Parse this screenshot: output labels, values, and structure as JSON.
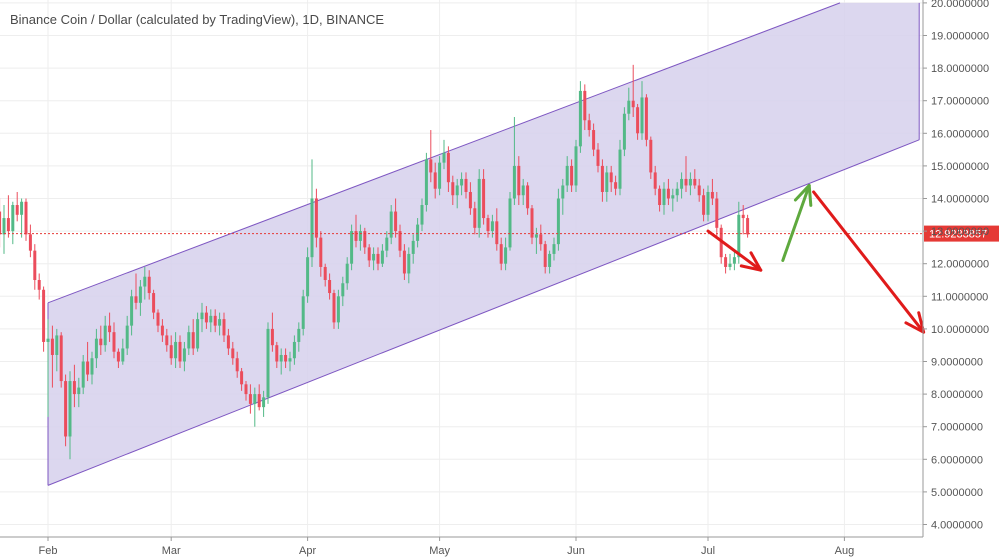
{
  "chart_data": {
    "type": "candlestick",
    "title": "Binance Coin / Dollar (calculated by TradingView), 1D, BINANCE",
    "x_ticks": [
      "Feb",
      "Mar",
      "Apr",
      "May",
      "Jun",
      "Jul",
      "Aug"
    ],
    "y_ticks": [
      "4.0000000",
      "5.0000000",
      "6.0000000",
      "7.0000000",
      "8.0000000",
      "9.0000000",
      "10.0000000",
      "11.0000000",
      "12.0000000",
      "13.0000000",
      "14.0000000",
      "15.0000000",
      "16.0000000",
      "17.0000000",
      "18.0000000",
      "19.0000000",
      "20.0000000"
    ],
    "ylim": [
      3.7,
      20.1
    ],
    "last_price": 12.9233857,
    "last_price_label": "12.9233857",
    "grid": true,
    "colors": {
      "up": "#53b987",
      "down": "#eb4d5c",
      "channel_fill": "#d6d0ec",
      "channel_line": "#7e57c2",
      "price_line": "#e53935",
      "arrow_red": "#e01b1b",
      "arrow_green": "#5ea93e"
    },
    "channel": {
      "lower": {
        "start": [
          "Feb 1",
          5.2
        ],
        "end": [
          "Aug 18",
          15.8
        ]
      },
      "upper": {
        "start": [
          "Feb 1",
          10.8
        ],
        "end": [
          "Jul 31",
          20.0
        ]
      },
      "fill_end": "Aug 18"
    },
    "arrows": [
      {
        "color": "red",
        "from": [
          "Jul 1",
          13.0
        ],
        "to": [
          "Jul 13",
          11.8
        ]
      },
      {
        "color": "green",
        "from": [
          "Jul 18",
          12.1
        ],
        "to": [
          "Jul 24",
          14.4
        ]
      },
      {
        "color": "red",
        "from": [
          "Jul 25",
          14.2
        ],
        "to": [
          "Aug 19",
          9.9
        ]
      }
    ],
    "candles": [
      [
        "Jan 18",
        13.2,
        14.2,
        12.5,
        14.0
      ],
      [
        "Jan 19",
        14.0,
        14.5,
        13.0,
        13.2
      ],
      [
        "Jan 20",
        13.2,
        14.3,
        12.7,
        13.6
      ],
      [
        "Jan 21",
        13.6,
        14.0,
        12.5,
        12.9
      ],
      [
        "Jan 22",
        12.9,
        13.8,
        12.3,
        13.4
      ],
      [
        "Jan 23",
        13.4,
        14.1,
        12.8,
        13.0
      ],
      [
        "Jan 24",
        13.0,
        13.9,
        12.6,
        13.8
      ],
      [
        "Jan 25",
        13.8,
        14.2,
        13.3,
        13.5
      ],
      [
        "Jan 26",
        13.5,
        14.0,
        12.8,
        13.9
      ],
      [
        "Jan 27",
        13.9,
        14.0,
        12.7,
        12.9
      ],
      [
        "Jan 28",
        12.9,
        13.2,
        12.2,
        12.4
      ],
      [
        "Jan 29",
        12.4,
        12.6,
        11.2,
        11.5
      ],
      [
        "Jan 30",
        11.5,
        11.7,
        10.9,
        11.2
      ],
      [
        "Jan 31",
        11.2,
        11.3,
        9.3,
        9.6
      ],
      [
        "Feb 1",
        9.6,
        10.3,
        7.3,
        9.7
      ],
      [
        "Feb 2",
        9.7,
        10.1,
        8.2,
        9.2
      ],
      [
        "Feb 3",
        9.2,
        10.0,
        8.7,
        9.8
      ],
      [
        "Feb 4",
        9.8,
        9.9,
        8.2,
        8.4
      ],
      [
        "Feb 5",
        8.4,
        8.6,
        6.4,
        6.7
      ],
      [
        "Feb 6",
        6.7,
        8.7,
        6.0,
        8.4
      ],
      [
        "Feb 7",
        8.4,
        8.9,
        7.6,
        8.0
      ],
      [
        "Feb 8",
        8.0,
        8.5,
        7.6,
        8.2
      ],
      [
        "Feb 9",
        8.2,
        9.2,
        8.0,
        9.0
      ],
      [
        "Feb 10",
        9.0,
        9.6,
        8.4,
        8.6
      ],
      [
        "Feb 11",
        8.6,
        9.3,
        8.3,
        9.1
      ],
      [
        "Feb 12",
        9.1,
        10.0,
        8.8,
        9.7
      ],
      [
        "Feb 13",
        9.7,
        10.1,
        9.2,
        9.5
      ],
      [
        "Feb 14",
        9.5,
        10.4,
        9.3,
        10.1
      ],
      [
        "Feb 15",
        10.1,
        10.5,
        9.6,
        9.9
      ],
      [
        "Feb 16",
        9.9,
        10.2,
        9.1,
        9.3
      ],
      [
        "Feb 17",
        9.3,
        9.4,
        8.8,
        9.0
      ],
      [
        "Feb 18",
        9.0,
        9.7,
        8.9,
        9.4
      ],
      [
        "Feb 19",
        9.4,
        10.4,
        9.2,
        10.1
      ],
      [
        "Feb 20",
        10.1,
        11.2,
        9.8,
        11.0
      ],
      [
        "Feb 21",
        11.0,
        11.7,
        10.6,
        10.8
      ],
      [
        "Feb 22",
        10.8,
        11.5,
        10.4,
        11.3
      ],
      [
        "Feb 23",
        11.3,
        11.9,
        10.9,
        11.6
      ],
      [
        "Feb 24",
        11.6,
        11.8,
        10.9,
        11.1
      ],
      [
        "Feb 25",
        11.1,
        11.2,
        10.3,
        10.5
      ],
      [
        "Feb 26",
        10.5,
        10.6,
        9.9,
        10.1
      ],
      [
        "Feb 27",
        10.1,
        10.3,
        9.6,
        9.8
      ],
      [
        "Feb 28",
        9.8,
        10.0,
        9.3,
        9.5
      ],
      [
        "Mar 1",
        9.5,
        9.8,
        8.9,
        9.1
      ],
      [
        "Mar 2",
        9.1,
        9.9,
        8.8,
        9.6
      ],
      [
        "Mar 3",
        9.6,
        9.8,
        8.8,
        9.0
      ],
      [
        "Mar 4",
        9.0,
        9.6,
        8.7,
        9.4
      ],
      [
        "Mar 5",
        9.4,
        10.1,
        9.2,
        9.9
      ],
      [
        "Mar 6",
        9.9,
        10.3,
        9.2,
        9.4
      ],
      [
        "Mar 7",
        9.4,
        10.5,
        9.3,
        10.3
      ],
      [
        "Mar 8",
        10.3,
        10.8,
        9.9,
        10.5
      ],
      [
        "Mar 9",
        10.5,
        10.7,
        10.0,
        10.2
      ],
      [
        "Mar 10",
        10.2,
        10.6,
        9.9,
        10.4
      ],
      [
        "Mar 11",
        10.4,
        10.6,
        9.9,
        10.1
      ],
      [
        "Mar 12",
        10.1,
        10.5,
        9.8,
        10.3
      ],
      [
        "Mar 13",
        10.3,
        10.5,
        9.6,
        9.8
      ],
      [
        "Mar 14",
        9.8,
        10.0,
        9.2,
        9.4
      ],
      [
        "Mar 15",
        9.4,
        9.6,
        8.9,
        9.1
      ],
      [
        "Mar 16",
        9.1,
        9.3,
        8.5,
        8.7
      ],
      [
        "Mar 17",
        8.7,
        8.8,
        8.1,
        8.3
      ],
      [
        "Mar 18",
        8.3,
        8.4,
        7.8,
        8.0
      ],
      [
        "Mar 19",
        8.0,
        8.3,
        7.4,
        7.7
      ],
      [
        "Mar 20",
        7.7,
        8.2,
        7.0,
        8.0
      ],
      [
        "Mar 21",
        8.0,
        8.3,
        7.5,
        7.6
      ],
      [
        "Mar 22",
        7.6,
        8.1,
        7.3,
        7.9
      ],
      [
        "Mar 23",
        7.9,
        10.2,
        7.7,
        10.0
      ],
      [
        "Mar 24",
        10.0,
        10.5,
        9.3,
        9.5
      ],
      [
        "Mar 25",
        9.5,
        9.6,
        8.8,
        9.0
      ],
      [
        "Mar 26",
        9.0,
        9.4,
        8.6,
        9.2
      ],
      [
        "Mar 27",
        9.2,
        9.4,
        8.8,
        9.0
      ],
      [
        "Mar 28",
        9.0,
        9.3,
        8.7,
        9.1
      ],
      [
        "Mar 29",
        9.1,
        9.8,
        8.9,
        9.6
      ],
      [
        "Mar 30",
        9.6,
        10.2,
        9.3,
        10.0
      ],
      [
        "Mar 31",
        10.0,
        11.2,
        9.8,
        11.0
      ],
      [
        "Apr 1",
        11.0,
        12.5,
        10.8,
        12.2
      ],
      [
        "Apr 2",
        12.2,
        15.2,
        11.9,
        14.0
      ],
      [
        "Apr 3",
        14.0,
        14.3,
        12.5,
        12.8
      ],
      [
        "Apr 4",
        12.8,
        13.0,
        11.6,
        11.9
      ],
      [
        "Apr 5",
        11.9,
        12.0,
        11.3,
        11.5
      ],
      [
        "Apr 6",
        11.5,
        11.7,
        10.9,
        11.1
      ],
      [
        "Apr 7",
        11.1,
        11.2,
        10.0,
        10.2
      ],
      [
        "Apr 8",
        10.2,
        11.2,
        10.0,
        11.0
      ],
      [
        "Apr 9",
        11.0,
        11.6,
        10.7,
        11.4
      ],
      [
        "Apr 10",
        11.4,
        12.2,
        11.2,
        12.0
      ],
      [
        "Apr 11",
        12.0,
        13.2,
        11.8,
        13.0
      ],
      [
        "Apr 12",
        13.0,
        13.5,
        12.5,
        12.7
      ],
      [
        "Apr 13",
        12.7,
        13.2,
        12.4,
        13.0
      ],
      [
        "Apr 14",
        13.0,
        13.1,
        12.3,
        12.5
      ],
      [
        "Apr 15",
        12.5,
        12.6,
        11.9,
        12.1
      ],
      [
        "Apr 16",
        12.1,
        12.5,
        11.8,
        12.3
      ],
      [
        "Apr 17",
        12.3,
        12.5,
        11.8,
        12.0
      ],
      [
        "Apr 18",
        12.0,
        12.6,
        11.9,
        12.4
      ],
      [
        "Apr 19",
        12.4,
        13.0,
        12.2,
        12.8
      ],
      [
        "Apr 20",
        12.8,
        13.8,
        12.6,
        13.6
      ],
      [
        "Apr 21",
        13.6,
        14.0,
        12.8,
        13.0
      ],
      [
        "Apr 22",
        13.0,
        13.2,
        12.2,
        12.4
      ],
      [
        "Apr 23",
        12.4,
        12.6,
        11.5,
        11.7
      ],
      [
        "Apr 24",
        11.7,
        12.5,
        11.4,
        12.3
      ],
      [
        "Apr 25",
        12.3,
        12.9,
        12.0,
        12.7
      ],
      [
        "Apr 26",
        12.7,
        13.4,
        12.5,
        13.2
      ],
      [
        "Apr 27",
        13.2,
        14.0,
        13.0,
        13.8
      ],
      [
        "Apr 28",
        13.8,
        15.4,
        13.6,
        15.2
      ],
      [
        "Apr 29",
        15.2,
        16.1,
        14.5,
        14.8
      ],
      [
        "Apr 30",
        14.8,
        15.1,
        14.0,
        14.3
      ],
      [
        "May 1",
        14.3,
        15.3,
        14.1,
        15.1
      ],
      [
        "May 2",
        15.1,
        15.8,
        14.9,
        15.4
      ],
      [
        "May 3",
        15.4,
        15.6,
        14.2,
        14.5
      ],
      [
        "May 4",
        14.5,
        14.7,
        13.8,
        14.1
      ],
      [
        "May 5",
        14.1,
        14.6,
        13.7,
        14.4
      ],
      [
        "May 6",
        14.4,
        14.8,
        14.1,
        14.6
      ],
      [
        "May 7",
        14.6,
        14.8,
        14.0,
        14.2
      ],
      [
        "May 8",
        14.2,
        14.5,
        13.5,
        13.7
      ],
      [
        "May 9",
        13.7,
        13.9,
        12.9,
        13.1
      ],
      [
        "May 10",
        13.1,
        14.9,
        12.8,
        14.6
      ],
      [
        "May 11",
        14.6,
        14.9,
        13.2,
        13.4
      ],
      [
        "May 12",
        13.4,
        13.5,
        12.8,
        13.0
      ],
      [
        "May 13",
        13.0,
        13.5,
        12.8,
        13.3
      ],
      [
        "May 14",
        13.3,
        13.7,
        12.4,
        12.6
      ],
      [
        "May 15",
        12.6,
        12.8,
        11.8,
        12.0
      ],
      [
        "May 16",
        12.0,
        12.8,
        11.8,
        12.5
      ],
      [
        "May 17",
        12.5,
        14.2,
        12.4,
        14.0
      ],
      [
        "May 18",
        14.0,
        16.5,
        13.8,
        15.0
      ],
      [
        "May 19",
        15.0,
        15.3,
        13.8,
        14.1
      ],
      [
        "May 20",
        14.1,
        14.6,
        13.8,
        14.4
      ],
      [
        "May 21",
        14.4,
        14.5,
        13.5,
        13.7
      ],
      [
        "May 22",
        13.7,
        13.8,
        12.6,
        12.8
      ],
      [
        "May 23",
        12.8,
        13.1,
        12.3,
        12.9
      ],
      [
        "May 24",
        12.9,
        13.2,
        12.4,
        12.6
      ],
      [
        "May 25",
        12.6,
        12.7,
        11.7,
        11.9
      ],
      [
        "May 26",
        11.9,
        12.4,
        11.7,
        12.3
      ],
      [
        "May 27",
        12.3,
        12.8,
        12.1,
        12.6
      ],
      [
        "May 28",
        12.6,
        14.3,
        12.4,
        14.0
      ],
      [
        "May 29",
        14.0,
        14.6,
        13.5,
        14.4
      ],
      [
        "May 30",
        14.4,
        15.3,
        14.2,
        15.0
      ],
      [
        "May 31",
        15.0,
        15.2,
        14.2,
        14.4
      ],
      [
        "Jun 1",
        14.4,
        15.8,
        14.2,
        15.6
      ],
      [
        "Jun 2",
        15.6,
        17.6,
        15.4,
        17.3
      ],
      [
        "Jun 3",
        17.3,
        17.5,
        16.1,
        16.4
      ],
      [
        "Jun 4",
        16.4,
        16.6,
        15.9,
        16.1
      ],
      [
        "Jun 5",
        16.1,
        16.3,
        15.3,
        15.5
      ],
      [
        "Jun 6",
        15.5,
        15.7,
        14.8,
        15.0
      ],
      [
        "Jun 7",
        15.0,
        15.2,
        13.9,
        14.2
      ],
      [
        "Jun 8",
        14.2,
        15.0,
        13.9,
        14.8
      ],
      [
        "Jun 9",
        14.8,
        15.0,
        14.2,
        14.5
      ],
      [
        "Jun 10",
        14.5,
        14.7,
        14.1,
        14.3
      ],
      [
        "Jun 11",
        14.3,
        15.8,
        14.1,
        15.5
      ],
      [
        "Jun 12",
        15.5,
        16.8,
        15.3,
        16.6
      ],
      [
        "Jun 13",
        16.6,
        17.4,
        16.4,
        17.0
      ],
      [
        "Jun 14",
        17.0,
        18.1,
        16.5,
        16.8
      ],
      [
        "Jun 15",
        16.8,
        16.9,
        15.8,
        16.0
      ],
      [
        "Jun 16",
        16.0,
        17.6,
        15.8,
        17.1
      ],
      [
        "Jun 17",
        17.1,
        17.2,
        15.6,
        15.8
      ],
      [
        "Jun 18",
        15.8,
        15.9,
        14.6,
        14.8
      ],
      [
        "Jun 19",
        14.8,
        15.0,
        14.1,
        14.3
      ],
      [
        "Jun 20",
        14.3,
        14.4,
        13.6,
        13.8
      ],
      [
        "Jun 21",
        13.8,
        14.5,
        13.5,
        14.3
      ],
      [
        "Jun 22",
        14.3,
        14.6,
        13.8,
        14.0
      ],
      [
        "Jun 23",
        14.0,
        14.3,
        13.6,
        14.1
      ],
      [
        "Jun 24",
        14.1,
        14.5,
        13.9,
        14.3
      ],
      [
        "Jun 25",
        14.3,
        14.8,
        14.0,
        14.6
      ],
      [
        "Jun 26",
        14.6,
        15.3,
        14.2,
        14.4
      ],
      [
        "Jun 27",
        14.4,
        14.8,
        14.1,
        14.6
      ],
      [
        "Jun 28",
        14.6,
        14.9,
        14.3,
        14.4
      ],
      [
        "Jun 29",
        14.4,
        14.6,
        13.9,
        14.1
      ],
      [
        "Jun 30",
        14.1,
        14.3,
        13.3,
        13.5
      ],
      [
        "Jul 1",
        13.5,
        14.4,
        13.3,
        14.2
      ],
      [
        "Jul 2",
        14.2,
        14.6,
        13.8,
        14.0
      ],
      [
        "Jul 3",
        14.0,
        14.2,
        12.8,
        13.1
      ],
      [
        "Jul 4",
        13.1,
        13.2,
        12.0,
        12.2
      ],
      [
        "Jul 5",
        12.2,
        12.3,
        11.7,
        11.9
      ],
      [
        "Jul 6",
        11.9,
        12.3,
        11.8,
        12.0
      ],
      [
        "Jul 7",
        12.0,
        12.4,
        11.8,
        12.2
      ],
      [
        "Jul 8",
        12.2,
        13.9,
        12.0,
        13.5
      ],
      [
        "Jul 9",
        13.5,
        13.8,
        12.9,
        13.4
      ],
      [
        "Jul 10",
        13.4,
        13.5,
        12.8,
        12.9
      ]
    ]
  }
}
